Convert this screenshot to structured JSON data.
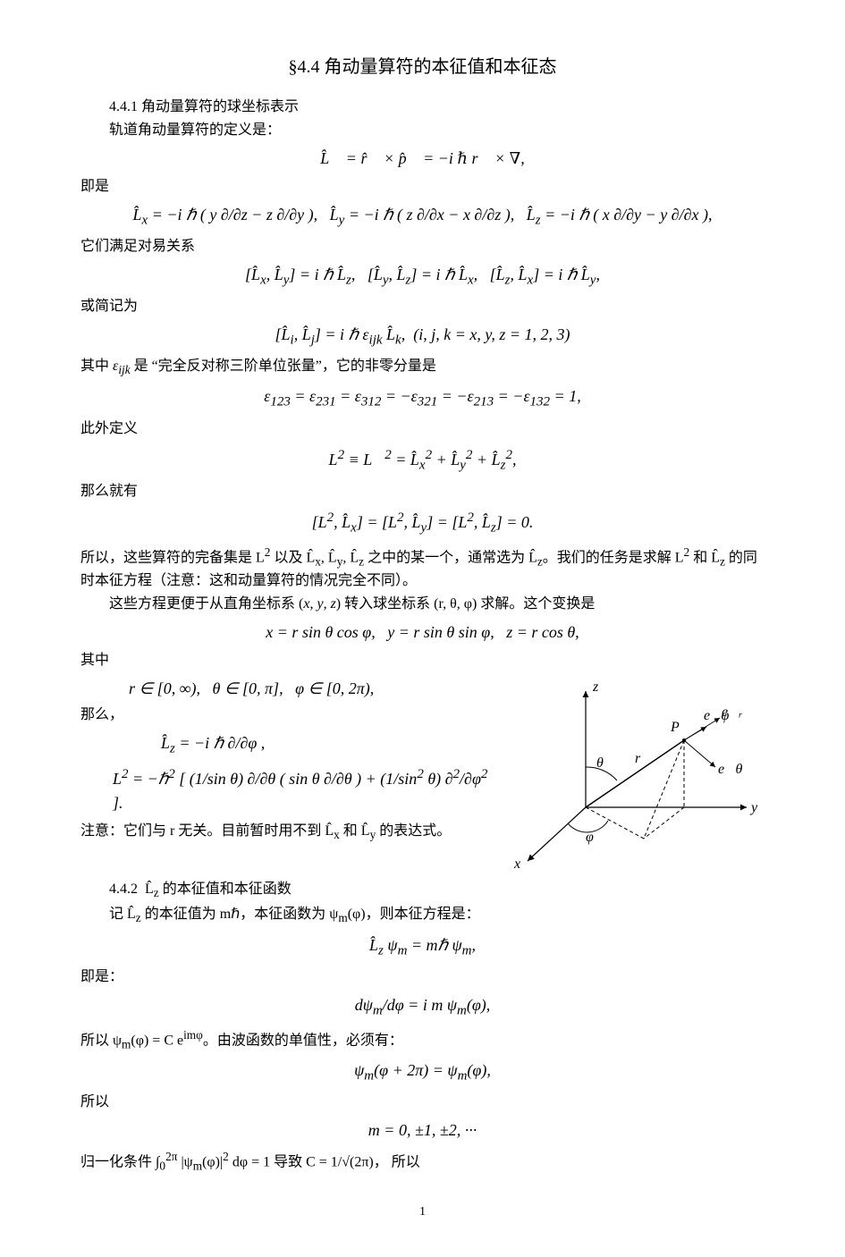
{
  "title": "§4.4  角动量算符的本征值和本征态",
  "sec1_heading": "4.4.1  角动量算符的球坐标表示",
  "line1": "轨道角动量算符的定义是：",
  "eq1": "L&#770;&#8407; = r&#770;&#8407; × p&#770;&#8407; = −i ℏ r&#8407; × ∇,",
  "line2": "即是",
  "eq2": "L&#770;<sub>x</sub> = −i ℏ ( y ∂/∂z − z ∂/∂y ),&nbsp;&nbsp;&nbsp;L&#770;<sub>y</sub> = −i ℏ ( z ∂/∂x − x ∂/∂z ),&nbsp;&nbsp;&nbsp;L&#770;<sub>z</sub> = −i ℏ ( x ∂/∂y − y ∂/∂x ),",
  "line3": "它们满足对易关系",
  "eq3": "[L&#770;<sub>x</sub>, L&#770;<sub>y</sub>] = i ℏ L&#770;<sub>z</sub>,&nbsp;&nbsp;&nbsp;[L&#770;<sub>y</sub>, L&#770;<sub>z</sub>] = i ℏ L&#770;<sub>x</sub>,&nbsp;&nbsp;&nbsp;[L&#770;<sub>z</sub>, L&#770;<sub>x</sub>] = i ℏ L&#770;<sub>y</sub>,",
  "line4": "或简记为",
  "eq4": "[L&#770;<sub>i</sub>, L&#770;<sub>j</sub>] = i ℏ ε<sub>ijk</sub> L&#770;<sub>k</sub>,&nbsp;&nbsp;(i, j, k = x, y, z = 1, 2, 3)",
  "line5_a": "其中 ",
  "line5_b": "ε<sub>ijk</sub>",
  "line5_c": " 是 “完全反对称三阶单位张量”，它的非零分量是",
  "eq5": "ε<sub>123</sub> = ε<sub>231</sub> = ε<sub>312</sub> = −ε<sub>321</sub> = −ε<sub>213</sub> = −ε<sub>132</sub> = 1,",
  "line6": "此外定义",
  "eq6": "L<sup>2</sup> ≡ L&#8407;<sup>2</sup> = L&#770;<sub>x</sub><sup>2</sup> + L&#770;<sub>y</sub><sup>2</sup> + L&#770;<sub>z</sub><sup>2</sup>,",
  "line7": "那么就有",
  "eq7": "[L<sup>2</sup>, L&#770;<sub>x</sub>] = [L<sup>2</sup>, L&#770;<sub>y</sub>] = [L<sup>2</sup>, L&#770;<sub>z</sub>] = 0.",
  "line8": "所以，这些算符的完备集是 L<sup>2</sup> 以及 L&#770;<sub>x</sub>, L&#770;<sub>y</sub>, L&#770;<sub>z</sub> 之中的某一个，通常选为 L&#770;<sub>z</sub>。我们的任务是求解 L<sup>2</sup> 和 L&#770;<sub>z</sub> 的同时本征方程（注意：这和动量算符的情况完全不同）。",
  "line9": "这些方程更便于从直角坐标系 (<i>x</i>, <i>y</i>, <i>z</i>) 转入球坐标系 (r, θ, φ) 求解。这个变换是",
  "eq8": "x = r sin θ cos φ,&nbsp;&nbsp;&nbsp;y = r sin θ sin φ,&nbsp;&nbsp;&nbsp;z = r cos θ,",
  "line10": "其中",
  "eq9": "r ∈ [0, ∞),&nbsp;&nbsp;&nbsp;θ ∈ [0, π],&nbsp;&nbsp;&nbsp;φ ∈ [0, 2π),",
  "line11": "那么，",
  "eq10": "L&#770;<sub>z</sub> = −i ℏ ∂/∂φ ,",
  "eq11": "L<sup>2</sup> = −ℏ<sup>2</sup> [ (1/sin θ) ∂/∂θ ( sin θ ∂/∂θ ) + (1/sin<sup>2</sup> θ) ∂<sup>2</sup>/∂φ<sup>2</sup> ].",
  "line12": "注意：它们与 r 无关。目前暂时用不到 L&#770;<sub>x</sub> 和 L&#770;<sub>y</sub> 的表达式。",
  "sec2_heading": "4.4.2&nbsp;&nbsp;L&#770;<sub>z</sub> 的本征值和本征函数",
  "line13": "记 L&#770;<sub>z</sub> 的本征值为 mℏ，本征函数为 ψ<sub>m</sub>(φ)，则本征方程是：",
  "eq12": "L&#770;<sub>z</sub> ψ<sub>m</sub> = mℏ ψ<sub>m</sub>,",
  "line14": "即是：",
  "eq13": "dψ<sub>m</sub>/dφ = i m ψ<sub>m</sub>(φ),",
  "line15": "所以 ψ<sub>m</sub>(φ) = C e<sup>imφ</sup>。由波函数的单值性，必须有：",
  "eq14": "ψ<sub>m</sub>(φ + 2π) = ψ<sub>m</sub>(φ),",
  "line16": "所以",
  "eq15": "m = 0, ±1, ±2, ···",
  "line17": "归一化条件 ∫<sub>0</sub><sup>2π</sup> |ψ<sub>m</sub>(φ)|<sup>2</sup> dφ = 1 导致 C = 1/√(2π)， 所以",
  "pagenum": "1",
  "figure": {
    "axes_color": "#000000",
    "dash_color": "#000000",
    "labels": {
      "x": "x",
      "y": "y",
      "z": "z",
      "P": "P",
      "r": "r",
      "theta": "θ",
      "phi": "φ",
      "er": "e⃗ᵣ",
      "etheta": "e⃗θ",
      "ephi": "e⃗φ"
    }
  }
}
